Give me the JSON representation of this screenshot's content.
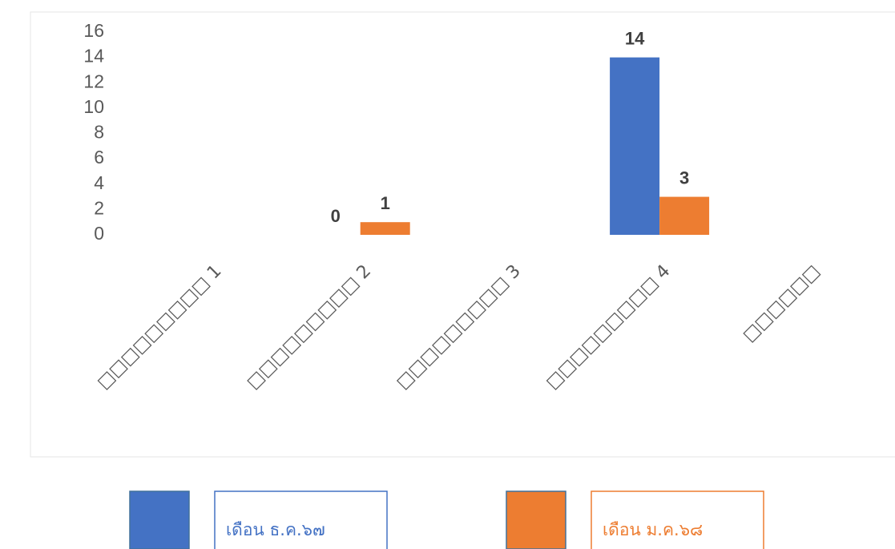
{
  "chart_data": {
    "type": "bar",
    "categories": [
      "□□□□□□□□□ 1",
      "□□□□□□□□□ 2",
      "□□□□□□□□□ 3",
      "□□□□□□□□□ 4",
      "□□□□□□"
    ],
    "series": [
      {
        "name": "เดือน ธ.ค.๖๗",
        "color": "#4472c4",
        "values": [
          null,
          0,
          null,
          14,
          null
        ]
      },
      {
        "name": "เดือน ม.ค.๖๘",
        "color": "#ed7d31",
        "values": [
          null,
          1,
          null,
          3,
          null
        ]
      }
    ],
    "ylim": [
      0,
      16
    ],
    "yticks": [
      0,
      2,
      4,
      6,
      8,
      10,
      12,
      14,
      16
    ],
    "grid": false
  }
}
